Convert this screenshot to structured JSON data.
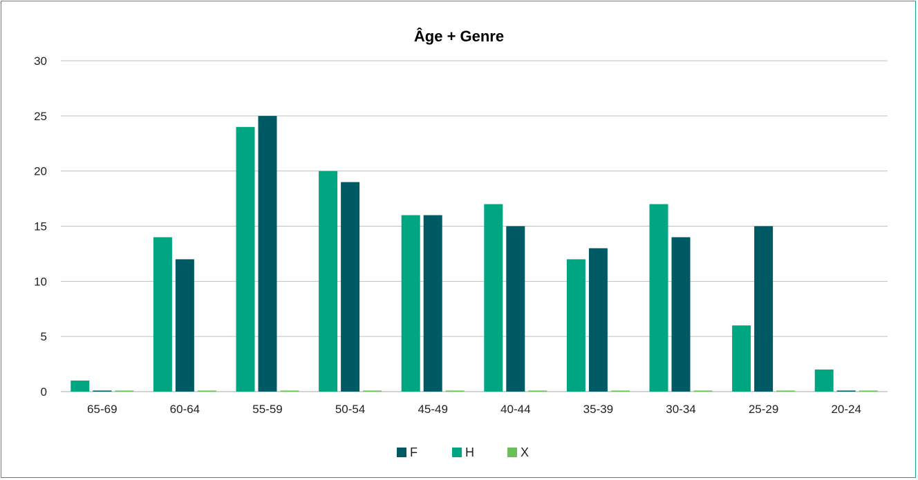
{
  "chart_data": {
    "type": "bar",
    "title": "Âge + Genre",
    "categories": [
      "65-69",
      "60-64",
      "55-59",
      "50-54",
      "45-49",
      "40-44",
      "35-39",
      "30-34",
      "25-29",
      "20-24"
    ],
    "series": [
      {
        "name": "H",
        "color": "#00a582",
        "values": [
          1,
          14,
          24,
          20,
          16,
          17,
          12,
          17,
          6,
          2
        ]
      },
      {
        "name": "F",
        "color": "#005a63",
        "values": [
          0,
          12,
          25,
          19,
          16,
          15,
          13,
          14,
          15,
          0
        ]
      },
      {
        "name": "X",
        "color": "#6bbf59",
        "values": [
          0,
          0,
          0,
          0,
          0,
          0,
          0,
          0,
          0,
          0
        ]
      }
    ],
    "legend_order": [
      "F",
      "H",
      "X"
    ],
    "yticks": [
      0,
      5,
      10,
      15,
      20,
      25,
      30
    ],
    "ylim": [
      0,
      30
    ],
    "xlabel": "",
    "ylabel": "",
    "grid": true,
    "legend_position": "bottom-center"
  }
}
